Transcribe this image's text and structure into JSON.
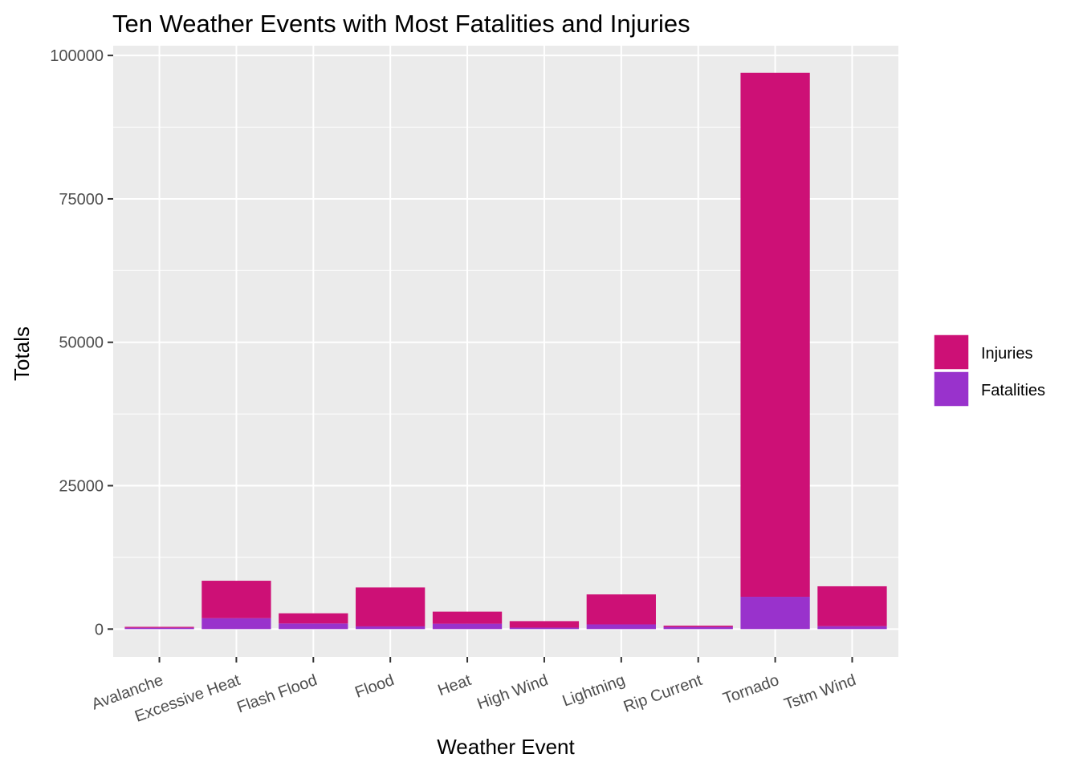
{
  "chart_data": {
    "type": "bar",
    "stacked": true,
    "title": "Ten Weather Events with Most Fatalities and Injuries",
    "xlabel": "Weather Event",
    "ylabel": "Totals",
    "categories": [
      "Avalanche",
      "Excessive Heat",
      "Flash Flood",
      "Flood",
      "Heat",
      "High Wind",
      "Lightning",
      "Rip Current",
      "Tornado",
      "Tstm Wind"
    ],
    "series": [
      {
        "name": "Fatalities",
        "color": "#9932CC",
        "values": [
          224,
          1903,
          978,
          470,
          937,
          248,
          816,
          368,
          5633,
          504
        ]
      },
      {
        "name": "Injuries",
        "color": "#CD1076",
        "values": [
          170,
          6525,
          1777,
          6789,
          2100,
          1137,
          5230,
          232,
          91346,
          6957
        ]
      }
    ],
    "legend_order": [
      "Injuries",
      "Fatalities"
    ],
    "legend_position": "right",
    "ylim": [
      -4850,
      101700
    ],
    "yticks": [
      0,
      25000,
      50000,
      75000,
      100000
    ],
    "ytick_labels": [
      "0",
      "25000",
      "50000",
      "75000",
      "100000"
    ],
    "grid": true,
    "background": "#EBEBEB"
  }
}
